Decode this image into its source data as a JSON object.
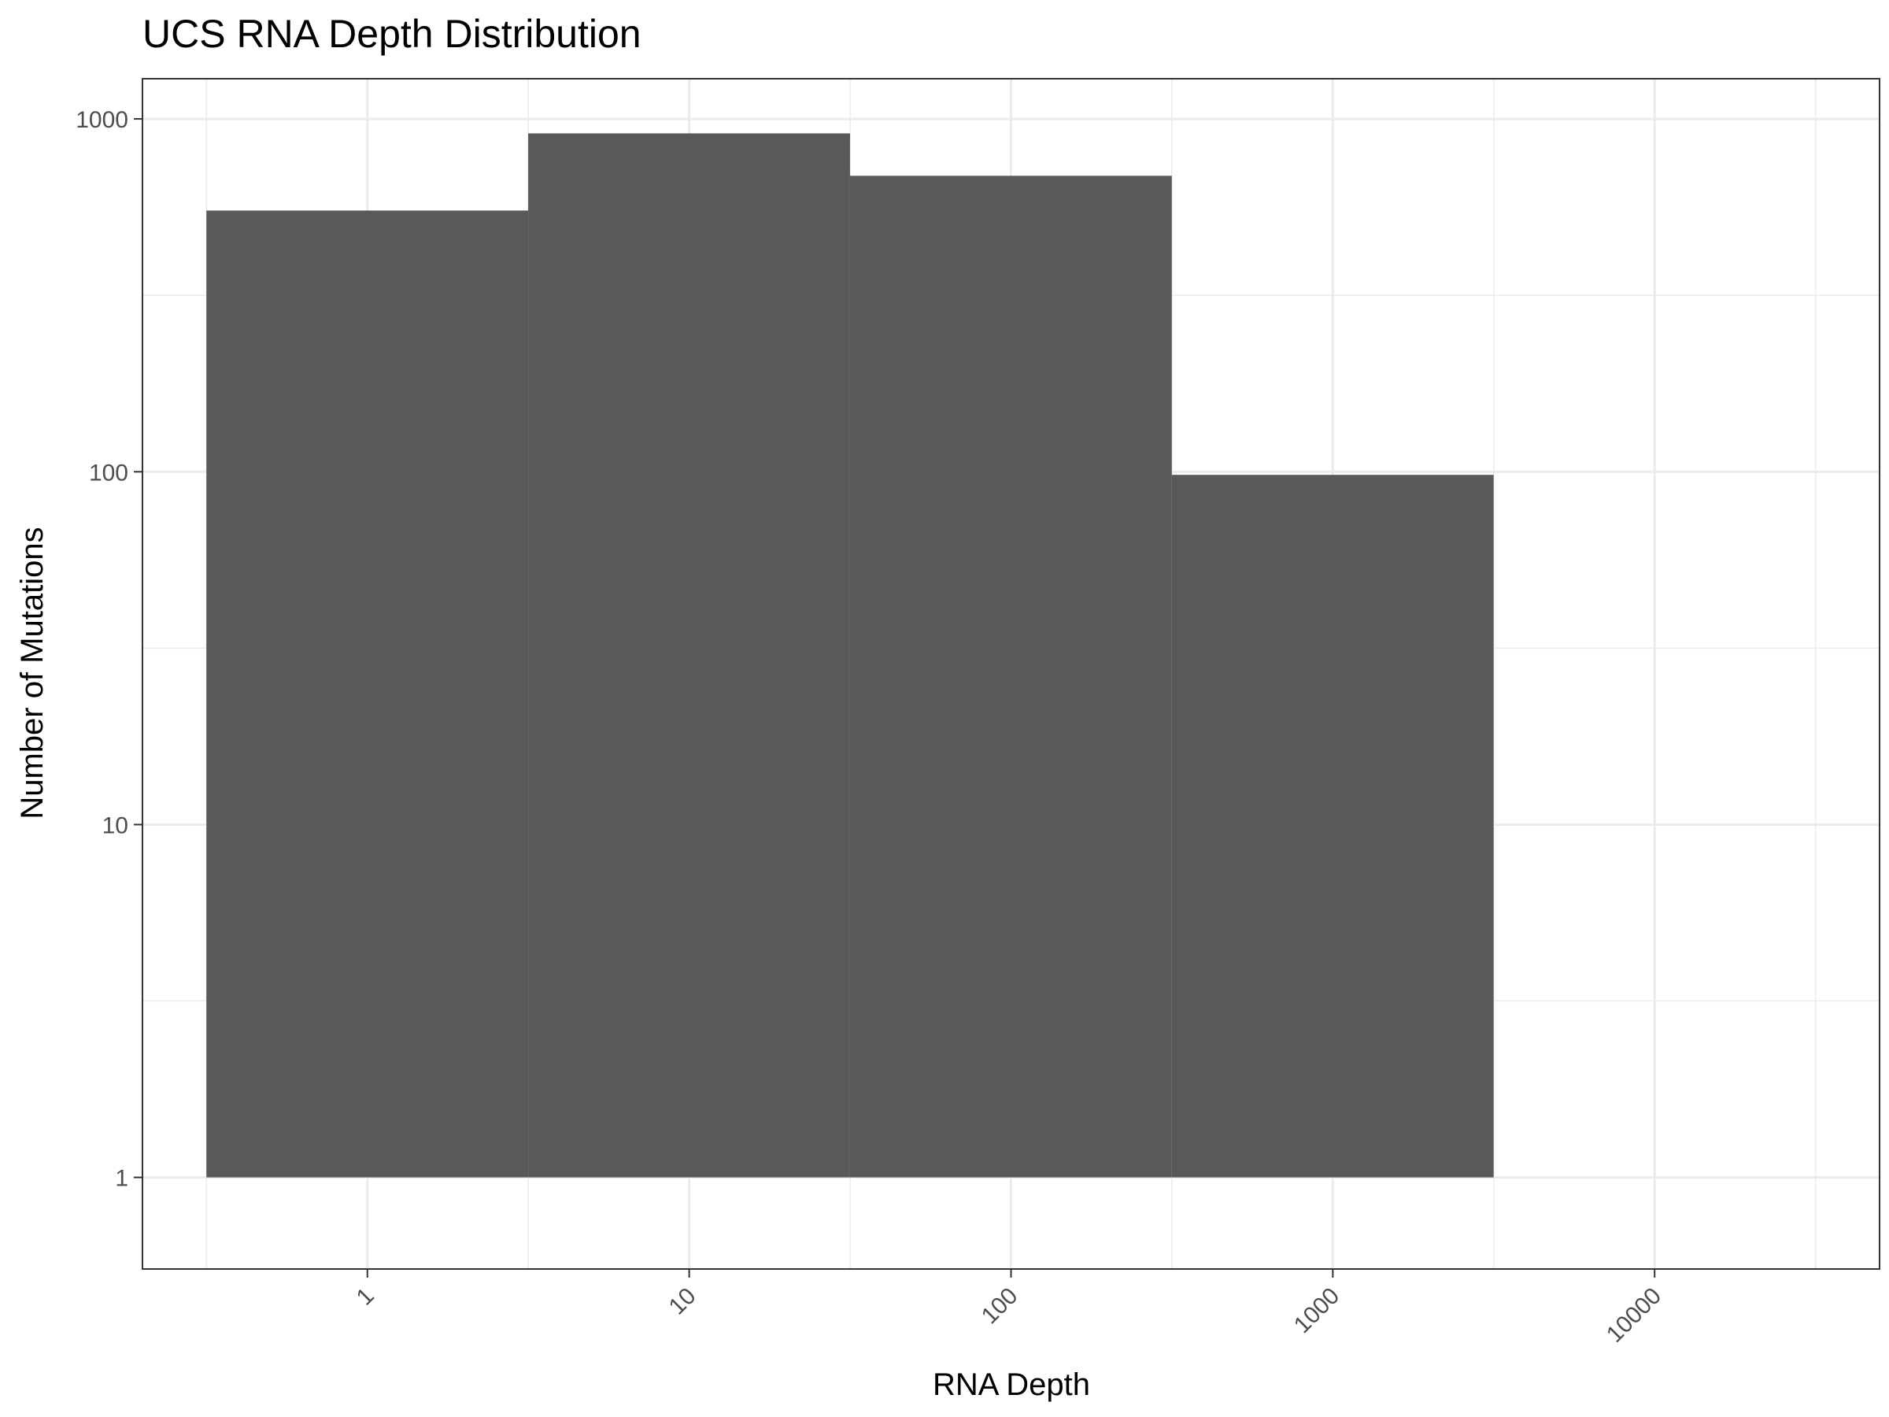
{
  "chart_data": {
    "type": "bar",
    "title": "UCS RNA Depth Distribution",
    "xlabel": "RNA Depth",
    "ylabel": "Number of Mutations",
    "x_scale": "log10",
    "y_scale": "log10",
    "xlim": [
      0.2,
      50000
    ],
    "ylim": [
      0.55,
      1300
    ],
    "x_ticks": [
      1,
      10,
      100,
      1000,
      10000
    ],
    "x_tick_labels": [
      "1",
      "10",
      "100",
      "1000",
      "10000"
    ],
    "y_ticks": [
      1,
      10,
      100,
      1000
    ],
    "y_tick_labels": [
      "1",
      "10",
      "100",
      "1000"
    ],
    "bins": [
      {
        "x_start": 0.316,
        "x_end": 3.16,
        "count": 550
      },
      {
        "x_start": 3.16,
        "x_end": 31.6,
        "count": 910
      },
      {
        "x_start": 31.6,
        "x_end": 316,
        "count": 690
      },
      {
        "x_start": 316,
        "x_end": 3160,
        "count": 98
      }
    ],
    "bar_color": "#595959",
    "grid": true,
    "legend": "none"
  }
}
